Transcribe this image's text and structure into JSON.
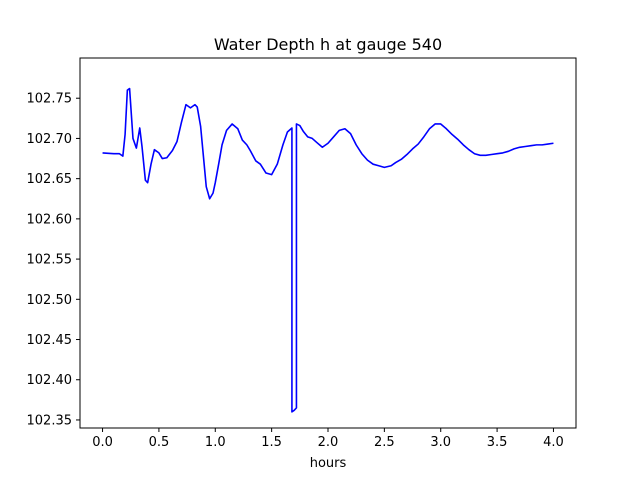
{
  "chart_data": {
    "type": "line",
    "title": "Water Depth h at gauge 540",
    "xlabel": "hours",
    "ylabel": "",
    "xlim": [
      -0.2,
      4.2
    ],
    "ylim": [
      102.34,
      102.8
    ],
    "grid": false,
    "legend": "none",
    "line_color": "#0000ff",
    "x_ticks": [
      {
        "value": 0.0,
        "label": "0.0"
      },
      {
        "value": 0.5,
        "label": "0.5"
      },
      {
        "value": 1.0,
        "label": "1.0"
      },
      {
        "value": 1.5,
        "label": "1.5"
      },
      {
        "value": 2.0,
        "label": "2.0"
      },
      {
        "value": 2.5,
        "label": "2.5"
      },
      {
        "value": 3.0,
        "label": "3.0"
      },
      {
        "value": 3.5,
        "label": "3.5"
      },
      {
        "value": 4.0,
        "label": "4.0"
      }
    ],
    "y_ticks": [
      {
        "value": 102.35,
        "label": "102.35"
      },
      {
        "value": 102.4,
        "label": "102.40"
      },
      {
        "value": 102.45,
        "label": "102.45"
      },
      {
        "value": 102.5,
        "label": "102.50"
      },
      {
        "value": 102.55,
        "label": "102.55"
      },
      {
        "value": 102.6,
        "label": "102.60"
      },
      {
        "value": 102.65,
        "label": "102.65"
      },
      {
        "value": 102.7,
        "label": "102.70"
      },
      {
        "value": 102.75,
        "label": "102.75"
      }
    ],
    "series": [
      {
        "x": [
          0.0,
          0.1,
          0.15,
          0.18,
          0.2,
          0.22,
          0.24,
          0.27,
          0.3,
          0.33,
          0.35,
          0.38,
          0.4,
          0.43,
          0.46,
          0.5,
          0.53,
          0.57,
          0.62,
          0.66,
          0.7,
          0.74,
          0.78,
          0.82,
          0.84,
          0.87,
          0.89,
          0.92,
          0.95,
          0.98,
          1.0,
          1.03,
          1.06,
          1.1,
          1.15,
          1.2,
          1.24,
          1.28,
          1.31,
          1.36,
          1.4,
          1.45,
          1.5,
          1.55,
          1.6,
          1.64,
          1.68,
          1.68,
          1.7,
          1.72,
          1.72,
          1.75,
          1.78,
          1.82,
          1.86,
          1.9,
          1.95,
          2.0,
          2.05,
          2.1,
          2.15,
          2.2,
          2.25,
          2.3,
          2.35,
          2.4,
          2.45,
          2.5,
          2.56,
          2.6,
          2.65,
          2.7,
          2.75,
          2.8,
          2.85,
          2.9,
          2.95,
          3.0,
          3.05,
          3.1,
          3.15,
          3.2,
          3.25,
          3.3,
          3.35,
          3.4,
          3.45,
          3.5,
          3.55,
          3.6,
          3.65,
          3.7,
          3.75,
          3.8,
          3.85,
          3.9,
          3.95,
          4.0
        ],
        "y": [
          102.682,
          102.681,
          102.681,
          102.678,
          102.705,
          102.76,
          102.762,
          102.7,
          102.688,
          102.713,
          102.69,
          102.648,
          102.645,
          102.668,
          102.686,
          102.682,
          102.675,
          102.676,
          102.685,
          102.696,
          102.72,
          102.742,
          102.738,
          102.742,
          102.739,
          102.715,
          102.685,
          102.64,
          102.625,
          102.632,
          102.645,
          102.668,
          102.692,
          102.71,
          102.718,
          102.712,
          102.698,
          102.692,
          102.685,
          102.672,
          102.668,
          102.657,
          102.655,
          102.668,
          102.692,
          102.708,
          102.713,
          102.36,
          102.362,
          102.365,
          102.718,
          102.716,
          102.709,
          102.702,
          102.7,
          102.695,
          102.689,
          102.694,
          102.702,
          102.71,
          102.712,
          102.706,
          102.692,
          102.681,
          102.673,
          102.668,
          102.666,
          102.664,
          102.666,
          102.67,
          102.674,
          102.68,
          102.687,
          102.693,
          102.702,
          102.712,
          102.718,
          102.718,
          102.712,
          102.705,
          102.699,
          102.692,
          102.686,
          102.681,
          102.679,
          102.679,
          102.68,
          102.681,
          102.682,
          102.684,
          102.687,
          102.689,
          102.69,
          102.691,
          102.692,
          102.692,
          102.693,
          102.694
        ]
      }
    ]
  }
}
